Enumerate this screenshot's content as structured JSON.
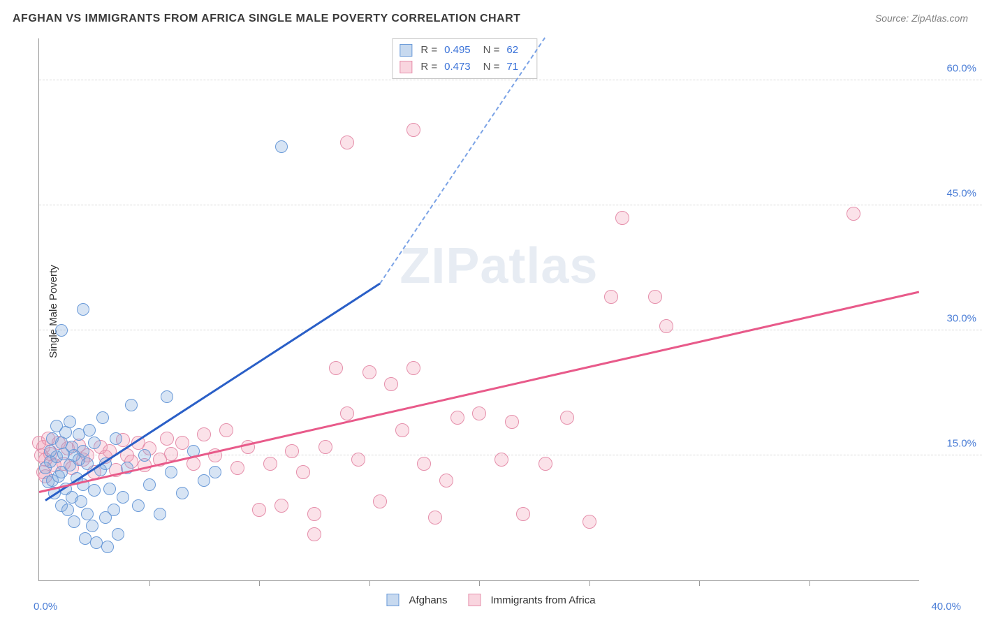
{
  "header": {
    "title": "AFGHAN VS IMMIGRANTS FROM AFRICA SINGLE MALE POVERTY CORRELATION CHART",
    "source": "Source: ZipAtlas.com"
  },
  "axes": {
    "ylabel": "Single Male Poverty",
    "x_min": 0,
    "x_max": 40,
    "y_min": 0,
    "y_max": 65,
    "y_ticks": [
      15,
      30,
      45,
      60
    ],
    "y_tick_labels": [
      "15.0%",
      "30.0%",
      "45.0%",
      "60.0%"
    ],
    "x_tick0": "0.0%",
    "x_tickN": "40.0%",
    "x_ticks_minor": [
      5,
      10,
      15,
      20,
      25,
      30,
      35
    ],
    "grid_color": "#d8d8d8",
    "tick_label_color": "#4a7dd6",
    "label_fontsize": 15
  },
  "watermark": {
    "part1": "ZIP",
    "part2": "atlas"
  },
  "stats_legend": {
    "rows": [
      {
        "swatch": "blue",
        "r_label": "R =",
        "r_value": "0.495",
        "n_label": "N =",
        "n_value": "62"
      },
      {
        "swatch": "pink",
        "r_label": "R =",
        "r_value": "0.473",
        "n_label": "N =",
        "n_value": "71"
      }
    ]
  },
  "bottom_legend": {
    "items": [
      {
        "swatch": "blue",
        "label": "Afghans"
      },
      {
        "swatch": "pink",
        "label": "Immigrants from Africa"
      }
    ]
  },
  "series": {
    "blue": {
      "color_fill": "rgba(130,170,220,0.32)",
      "color_stroke": "#6a9ad8",
      "marker_radius": 9,
      "points": [
        [
          0.3,
          13.5
        ],
        [
          0.4,
          11.8
        ],
        [
          0.5,
          14.2
        ],
        [
          0.6,
          12.0
        ],
        [
          0.7,
          10.5
        ],
        [
          0.8,
          14.8
        ],
        [
          0.9,
          12.5
        ],
        [
          1.0,
          13.0
        ],
        [
          1.0,
          9.0
        ],
        [
          1.1,
          15.2
        ],
        [
          1.2,
          11.0
        ],
        [
          1.3,
          8.5
        ],
        [
          1.4,
          13.8
        ],
        [
          1.5,
          10.0
        ],
        [
          1.5,
          16.0
        ],
        [
          1.6,
          7.0
        ],
        [
          1.7,
          12.2
        ],
        [
          1.8,
          14.5
        ],
        [
          1.8,
          17.5
        ],
        [
          1.9,
          9.5
        ],
        [
          2.0,
          11.5
        ],
        [
          2.0,
          15.5
        ],
        [
          2.1,
          5.0
        ],
        [
          2.2,
          8.0
        ],
        [
          2.3,
          18.0
        ],
        [
          2.4,
          6.5
        ],
        [
          2.5,
          10.8
        ],
        [
          2.5,
          16.5
        ],
        [
          2.6,
          4.5
        ],
        [
          2.8,
          13.2
        ],
        [
          2.9,
          19.5
        ],
        [
          3.0,
          7.5
        ],
        [
          3.0,
          14.0
        ],
        [
          3.1,
          4.0
        ],
        [
          3.2,
          11.0
        ],
        [
          3.4,
          8.5
        ],
        [
          3.5,
          17.0
        ],
        [
          3.6,
          5.5
        ],
        [
          3.8,
          10.0
        ],
        [
          4.0,
          13.5
        ],
        [
          4.2,
          21.0
        ],
        [
          4.5,
          9.0
        ],
        [
          4.8,
          15.0
        ],
        [
          5.0,
          11.5
        ],
        [
          5.5,
          8.0
        ],
        [
          5.8,
          22.0
        ],
        [
          6.0,
          13.0
        ],
        [
          6.5,
          10.5
        ],
        [
          7.0,
          15.5
        ],
        [
          7.5,
          12.0
        ],
        [
          8.0,
          13.0
        ],
        [
          1.0,
          30.0
        ],
        [
          2.0,
          32.5
        ],
        [
          11.0,
          52.0
        ],
        [
          0.5,
          15.5
        ],
        [
          0.6,
          17.0
        ],
        [
          0.8,
          18.5
        ],
        [
          1.0,
          16.5
        ],
        [
          1.2,
          17.8
        ],
        [
          1.4,
          19.0
        ],
        [
          1.6,
          15.0
        ],
        [
          2.2,
          14.0
        ]
      ],
      "trend": {
        "x1": 0.3,
        "y1": 9.5,
        "x2": 15.5,
        "y2": 35.5,
        "dash_to_x": 23.0,
        "dash_to_y": 65.0,
        "color": "#2a5fc7",
        "width": 3
      }
    },
    "pink": {
      "color_fill": "rgba(240,150,175,0.28)",
      "color_stroke": "#e58fab",
      "marker_radius": 10,
      "points": [
        [
          0.2,
          16.0
        ],
        [
          0.3,
          14.5
        ],
        [
          0.5,
          15.2
        ],
        [
          0.7,
          13.8
        ],
        [
          0.9,
          16.5
        ],
        [
          1.1,
          14.0
        ],
        [
          1.3,
          15.8
        ],
        [
          1.5,
          13.5
        ],
        [
          1.8,
          16.2
        ],
        [
          2.0,
          14.5
        ],
        [
          2.2,
          15.0
        ],
        [
          2.5,
          13.0
        ],
        [
          2.8,
          16.0
        ],
        [
          3.0,
          14.8
        ],
        [
          3.2,
          15.5
        ],
        [
          3.5,
          13.2
        ],
        [
          3.8,
          16.8
        ],
        [
          4.0,
          15.0
        ],
        [
          4.2,
          14.2
        ],
        [
          4.5,
          16.5
        ],
        [
          4.8,
          13.8
        ],
        [
          5.0,
          15.8
        ],
        [
          5.5,
          14.5
        ],
        [
          5.8,
          17.0
        ],
        [
          6.0,
          15.2
        ],
        [
          6.5,
          16.5
        ],
        [
          7.0,
          14.0
        ],
        [
          7.5,
          17.5
        ],
        [
          8.0,
          15.0
        ],
        [
          8.5,
          18.0
        ],
        [
          9.0,
          13.5
        ],
        [
          9.5,
          16.0
        ],
        [
          10.0,
          8.5
        ],
        [
          10.5,
          14.0
        ],
        [
          11.0,
          9.0
        ],
        [
          11.5,
          15.5
        ],
        [
          12.0,
          13.0
        ],
        [
          12.5,
          8.0
        ],
        [
          13.0,
          16.0
        ],
        [
          13.5,
          25.5
        ],
        [
          14.0,
          20.0
        ],
        [
          14.5,
          14.5
        ],
        [
          15.0,
          25.0
        ],
        [
          15.5,
          9.5
        ],
        [
          16.0,
          23.5
        ],
        [
          16.5,
          18.0
        ],
        [
          17.0,
          25.5
        ],
        [
          17.5,
          14.0
        ],
        [
          18.0,
          7.5
        ],
        [
          18.5,
          12.0
        ],
        [
          19.0,
          19.5
        ],
        [
          20.0,
          20.0
        ],
        [
          21.0,
          14.5
        ],
        [
          21.5,
          19.0
        ],
        [
          22.0,
          8.0
        ],
        [
          23.0,
          14.0
        ],
        [
          24.0,
          19.5
        ],
        [
          25.0,
          7.0
        ],
        [
          26.5,
          43.5
        ],
        [
          26.0,
          34.0
        ],
        [
          28.0,
          34.0
        ],
        [
          28.5,
          30.5
        ],
        [
          14.0,
          52.5
        ],
        [
          17.0,
          54.0
        ],
        [
          12.5,
          5.5
        ],
        [
          37.0,
          44.0
        ],
        [
          0.0,
          16.5
        ],
        [
          0.1,
          15.0
        ],
        [
          0.2,
          13.0
        ],
        [
          0.4,
          17.0
        ],
        [
          0.3,
          12.5
        ]
      ],
      "trend": {
        "x1": 0.0,
        "y1": 10.5,
        "x2": 40.0,
        "y2": 34.5,
        "color": "#e85a8a",
        "width": 3
      }
    }
  }
}
